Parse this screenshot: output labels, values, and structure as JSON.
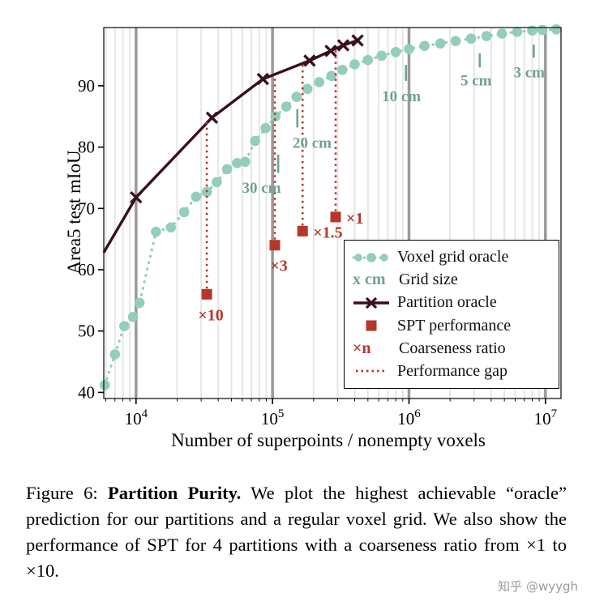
{
  "chart_data": {
    "type": "line",
    "xlabel": "Number of superpoints / nonempty voxels",
    "ylabel": "Area5 test mIoU",
    "xscale": "log",
    "xlim": [
      5800,
      13000000
    ],
    "ylim": [
      39,
      99.5
    ],
    "x_ticks": [
      10000,
      100000,
      1000000,
      10000000
    ],
    "x_tick_labels": [
      "10^4",
      "10^5",
      "10^6",
      "10^7"
    ],
    "y_ticks": [
      40,
      50,
      60,
      70,
      80,
      90
    ],
    "grid": "vertical-log",
    "legend_position": "lower right",
    "colors": {
      "voxel": "#93cdbb",
      "partition": "#3a0e22",
      "spt": "#b5372a",
      "annotation": "#6fa293",
      "grid_minor": "#e6e6e6",
      "grid_major": "#9a9a9a"
    },
    "series": [
      {
        "name": "Voxel grid oracle",
        "style": "dotted-line-circle-markers",
        "points": [
          [
            5900,
            41.2
          ],
          [
            7000,
            46.2
          ],
          [
            8200,
            50.8
          ],
          [
            9500,
            52.3
          ],
          [
            10600,
            54.6
          ],
          [
            14000,
            66.2
          ],
          [
            18000,
            66.9
          ],
          [
            22500,
            69.4
          ],
          [
            27500,
            71.9
          ],
          [
            33000,
            72.7
          ],
          [
            39000,
            74.3
          ],
          [
            46500,
            76.4
          ],
          [
            55000,
            77.4
          ],
          [
            63000,
            77.6
          ],
          [
            74500,
            81.0
          ],
          [
            89000,
            83.1
          ],
          [
            105000,
            85.0
          ],
          [
            126000,
            86.6
          ],
          [
            150000,
            88.2
          ],
          [
            180000,
            89.5
          ],
          [
            220000,
            90.6
          ],
          [
            270000,
            91.6
          ],
          [
            325000,
            92.6
          ],
          [
            400000,
            93.5
          ],
          [
            500000,
            94.2
          ],
          [
            630000,
            94.9
          ],
          [
            800000,
            95.5
          ],
          [
            1000000,
            96.0
          ],
          [
            1300000,
            96.5
          ],
          [
            1700000,
            96.9
          ],
          [
            2200000,
            97.3
          ],
          [
            2850000,
            97.7
          ],
          [
            3700000,
            98.1
          ],
          [
            4800000,
            98.5
          ],
          [
            6200000,
            98.8
          ],
          [
            8000000,
            99.0
          ],
          [
            9500000,
            99.1
          ],
          [
            12000000,
            99.2
          ]
        ]
      },
      {
        "name": "Partition oracle",
        "style": "solid-line-x-markers",
        "line_start": [
          5800,
          62.8
        ],
        "points": [
          [
            10000,
            71.8
          ],
          [
            36000,
            84.8
          ],
          [
            85000,
            91.1
          ],
          [
            187000,
            94.1
          ],
          [
            267000,
            95.7
          ],
          [
            330000,
            96.6
          ],
          [
            420000,
            97.4
          ]
        ]
      }
    ],
    "spt_performance": [
      {
        "x": 33000,
        "y": 56.0,
        "ratio": "×10",
        "gap_top": 84.3,
        "label_pos": "below"
      },
      {
        "x": 104000,
        "y": 64.0,
        "ratio": "×3",
        "gap_top": 91.6,
        "label_pos": "below"
      },
      {
        "x": 166000,
        "y": 66.3,
        "ratio": "×1.5",
        "gap_top": 93.6,
        "label_pos": "right"
      },
      {
        "x": 290000,
        "y": 68.6,
        "ratio": "×1",
        "gap_top": 95.9,
        "label_pos": "right"
      }
    ],
    "grid_size_annotations": [
      {
        "label": "30 cm",
        "x": 83000,
        "y": 73.5,
        "tick": {
          "x": 110000,
          "y1": 75.8,
          "y2": 78.8
        }
      },
      {
        "label": "20 cm",
        "x": 195000,
        "y": 80.8,
        "tick": {
          "x": 152000,
          "y1": 83.2,
          "y2": 86.2
        }
      },
      {
        "label": "10 cm",
        "x": 880000,
        "y": 88.4,
        "tick": {
          "x": 950000,
          "y1": 90.8,
          "y2": 93.4
        }
      },
      {
        "label": "5 cm",
        "x": 3100000,
        "y": 91.0,
        "tick": {
          "x": 3300000,
          "y1": 93.0,
          "y2": 95.3
        }
      },
      {
        "label": "3 cm",
        "x": 7600000,
        "y": 92.3,
        "tick": {
          "x": 8200000,
          "y1": 94.6,
          "y2": 96.7
        }
      }
    ]
  },
  "legend": {
    "items": [
      {
        "label": "Voxel grid oracle"
      },
      {
        "symbol": "x cm",
        "label": "Grid size"
      },
      {
        "label": "Partition oracle"
      },
      {
        "label": "SPT performance"
      },
      {
        "symbol": "×n",
        "label": "Coarseness ratio"
      },
      {
        "label": "Performance gap"
      }
    ]
  },
  "caption": {
    "prefix": "Figure 6: ",
    "bold": "Partition Purity.",
    "body": " We plot the highest achievable “oracle” prediction for our partitions and a regular voxel grid. We also show the performance of SPT for 4 partitions with a coarseness ratio from ×1 to ×10."
  },
  "watermark": {
    "text": "知乎 @wyygh"
  }
}
